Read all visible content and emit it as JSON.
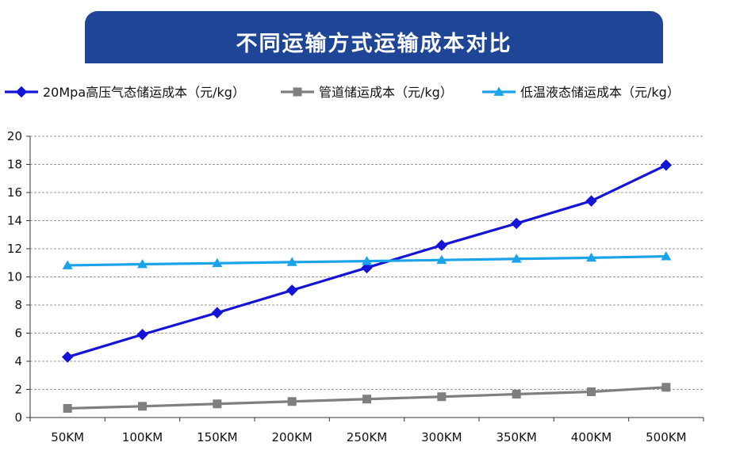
{
  "page": {
    "title": "不同运输方式运输成本对比"
  },
  "chart_data": {
    "type": "line",
    "title": "不同运输方式运输成本对比",
    "xlabel": "",
    "ylabel": "",
    "categories": [
      "50KM",
      "100KM",
      "150KM",
      "200KM",
      "250KM",
      "300KM",
      "350KM",
      "400KM",
      "500KM"
    ],
    "ylim": [
      0,
      20
    ],
    "yticks": [
      0,
      2,
      4,
      6,
      8,
      10,
      12,
      14,
      16,
      18,
      20
    ],
    "grid": true,
    "legend_position": "top",
    "series": [
      {
        "name": "20Mpa高压气态储运成本（元/kg）",
        "color": "#1414d8",
        "marker": "diamond",
        "values": [
          4.3,
          5.9,
          7.45,
          9.05,
          10.65,
          12.25,
          13.8,
          15.4,
          17.95
        ]
      },
      {
        "name": "管道储运成本（元/kg）",
        "color": "#7f7f7f",
        "marker": "square",
        "values": [
          0.65,
          0.8,
          0.97,
          1.14,
          1.31,
          1.48,
          1.66,
          1.83,
          2.15
        ]
      },
      {
        "name": "低温液态储运成本（元/kg）",
        "color": "#1aa3e8",
        "marker": "triangle",
        "values": [
          10.82,
          10.9,
          10.97,
          11.05,
          11.12,
          11.2,
          11.28,
          11.36,
          11.46
        ]
      }
    ]
  }
}
